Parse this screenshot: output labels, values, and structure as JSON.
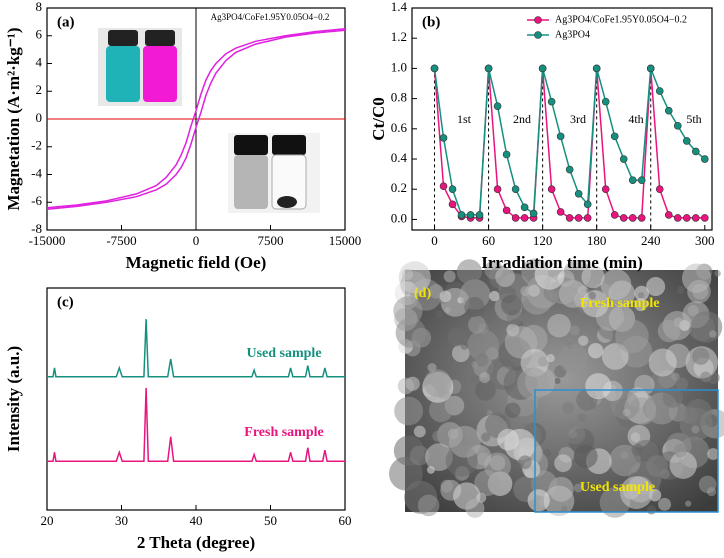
{
  "chart_data": [
    {
      "type": "line",
      "label": "(a)",
      "x_label": "Magnetic field (Oe)",
      "y_label": "Magnetation (A·m²·kg⁻¹)",
      "annotations": [
        {
          "text": "Ag3PO4/CoFe1.95Y0.05O4−0.2",
          "color": "#000000"
        }
      ],
      "x": [
        -15000,
        -12000,
        -9000,
        -6000,
        -4000,
        -3000,
        -2000,
        -1500,
        -1000,
        -500,
        0,
        500,
        1000,
        1500,
        2000,
        3000,
        4000,
        6000,
        9000,
        12000,
        15000
      ],
      "series": [
        {
          "color": "#e020e0",
          "values": [
            -6.4,
            -6.2,
            -5.9,
            -5.4,
            -4.8,
            -4.2,
            -3.3,
            -2.6,
            -1.7,
            -0.5,
            0.6,
            1.8,
            2.8,
            3.5,
            4.0,
            4.7,
            5.1,
            5.6,
            6.0,
            6.3,
            6.5
          ]
        },
        {
          "color": "#e020e0",
          "values": [
            -6.5,
            -6.3,
            -6.0,
            -5.6,
            -5.1,
            -4.7,
            -4.0,
            -3.5,
            -2.8,
            -1.8,
            -0.6,
            0.5,
            1.7,
            2.6,
            3.3,
            4.2,
            4.8,
            5.4,
            5.9,
            6.2,
            6.4
          ]
        }
      ],
      "xlim": [
        -15000,
        15000
      ],
      "xticks": [
        -15000,
        -7500,
        0,
        7500,
        15000
      ],
      "ylim": [
        -8,
        8
      ],
      "yticks": [
        -8,
        -6,
        -4,
        -2,
        0,
        2,
        4,
        6,
        8
      ]
    },
    {
      "type": "line",
      "label": "(b)",
      "x_label": "Irradiation time (min)",
      "y_label": "Ct/C0",
      "annotations": [
        {
          "text": "1st",
          "color": "#000000"
        },
        {
          "text": "2nd",
          "color": "#000000"
        },
        {
          "text": "3rd",
          "color": "#000000"
        },
        {
          "text": "4th",
          "color": "#000000"
        },
        {
          "text": "5th",
          "color": "#000000"
        }
      ],
      "x": [
        0,
        10,
        20,
        30,
        40,
        50,
        60,
        70,
        80,
        90,
        100,
        110,
        120,
        130,
        140,
        150,
        160,
        170,
        180,
        190,
        200,
        210,
        220,
        230,
        240,
        250,
        260,
        270,
        280,
        290,
        300
      ],
      "series": [
        {
          "name": "Ag3PO4/CoFe1.95Y0.05O4−0.2",
          "color": "#e8157e",
          "marker": true,
          "values": [
            1.0,
            0.22,
            0.1,
            0.02,
            0.01,
            0.01,
            1.0,
            0.2,
            0.06,
            0.01,
            0.01,
            0.01,
            1.0,
            0.2,
            0.05,
            0.01,
            0.01,
            0.01,
            1.0,
            0.2,
            0.03,
            0.01,
            0.01,
            0.01,
            1.0,
            0.2,
            0.03,
            0.01,
            0.01,
            0.01,
            0.01
          ]
        },
        {
          "name": "Ag3PO4",
          "color": "#15907f",
          "marker": true,
          "values": [
            1.0,
            0.54,
            0.2,
            0.03,
            0.03,
            0.03,
            1.0,
            0.75,
            0.43,
            0.2,
            0.08,
            0.04,
            1.0,
            0.78,
            0.55,
            0.33,
            0.17,
            0.1,
            1.0,
            0.78,
            0.55,
            0.4,
            0.26,
            0.26,
            1.0,
            0.85,
            0.72,
            0.62,
            0.52,
            0.45,
            0.4
          ]
        }
      ],
      "xlim": [
        -25,
        308
      ],
      "xticks": [
        0,
        60,
        120,
        180,
        240,
        300
      ],
      "ylim": [
        -0.07,
        1.4
      ],
      "yticks": [
        {
          "value": 0,
          "label": "0.0"
        },
        {
          "value": 0.2,
          "label": "0.2"
        },
        {
          "value": 0.4,
          "label": "0.4"
        },
        {
          "value": 0.6,
          "label": "0.6"
        },
        {
          "value": 0.8,
          "label": "0.8"
        },
        {
          "value": 1.0,
          "label": "1.0"
        },
        {
          "value": 1.2,
          "label": "1.2"
        },
        {
          "value": 1.4,
          "label": "1.4"
        }
      ]
    },
    {
      "type": "line",
      "label": "(c)",
      "x_label": "2 Theta (degree)",
      "y_label": "Intensity (a.u.)",
      "annotations": [
        {
          "text": "Used sample",
          "color": "#15907f"
        },
        {
          "text": "Fresh sample",
          "color": "#e8157e"
        }
      ],
      "x": [
        20,
        20.8,
        21,
        21.2,
        29.3,
        29.7,
        30.1,
        33.0,
        33.3,
        33.6,
        36.2,
        36.6,
        37.0,
        47.5,
        47.8,
        48.1,
        52.4,
        52.7,
        53.0,
        54.7,
        55.0,
        55.3,
        57.0,
        57.3,
        57.6,
        60
      ],
      "series": [
        {
          "color": "#15907f",
          "values": [
            60,
            60,
            64,
            60,
            60,
            64,
            60,
            60,
            86,
            60,
            60,
            68,
            60,
            60,
            63,
            60,
            60,
            64,
            60,
            60,
            65,
            60,
            60,
            64,
            60,
            60
          ]
        },
        {
          "color": "#e8157e",
          "values": [
            22,
            22,
            26,
            22,
            22,
            26,
            22,
            22,
            55,
            22,
            22,
            33,
            22,
            22,
            25,
            22,
            22,
            26,
            22,
            22,
            28,
            22,
            22,
            27,
            22,
            22
          ]
        }
      ],
      "xlim": [
        20,
        60
      ],
      "xticks": [
        20,
        30,
        40,
        50,
        60
      ],
      "ylim": [
        0,
        100
      ]
    }
  ],
  "image_panel": {
    "label": "(d)",
    "top_text": "Fresh sample",
    "inset_text": "Used sample"
  }
}
